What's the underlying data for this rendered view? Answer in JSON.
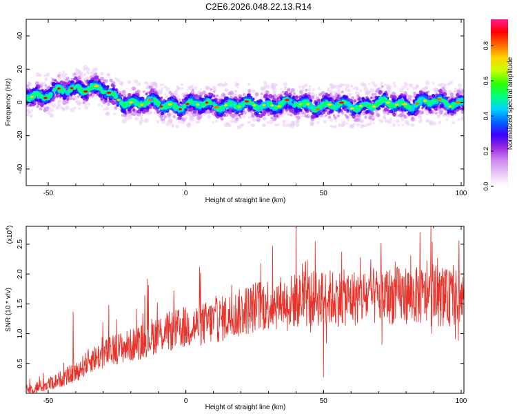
{
  "title": "C2E6.2026.048.22.13.R14",
  "colors": {
    "snr_line": "#e8322a",
    "axis": "#000000",
    "colormap": [
      "#ffffff",
      "#e9c8f5",
      "#cf8af0",
      "#9b2be0",
      "#3b00ff",
      "#0064ff",
      "#00d2ff",
      "#00ff7a",
      "#2eff00",
      "#c8ff00",
      "#ffd400",
      "#ff6a00",
      "#ff0000",
      "#ff1a8c"
    ]
  },
  "chart_data": [
    {
      "type": "heatmap",
      "description": "spectrogram of frequency vs height",
      "xlabel": "Height of straight line (km)",
      "ylabel": "Frequency (Hz)",
      "xlim": [
        -58,
        101
      ],
      "ylim": [
        -50,
        50
      ],
      "xticks": [
        "-50",
        "0",
        "50",
        "100"
      ],
      "yticks": [
        "40",
        "20",
        "0",
        "-20",
        "-40"
      ],
      "colorbar": {
        "label": "Normalized spectral amplitude",
        "range": [
          0.0,
          0.95
        ],
        "ticks": [
          "0.0",
          "0.2",
          "0.4",
          "0.6",
          "0.8"
        ]
      },
      "ridge": {
        "x": [
          -58,
          -50,
          -45,
          -40,
          -35,
          -30,
          -25,
          -20,
          -10,
          0,
          10,
          20,
          30,
          40,
          50,
          60,
          70,
          80,
          90,
          100
        ],
        "y": [
          5,
          4,
          7,
          9,
          9,
          7,
          2,
          0,
          -1,
          -2,
          -1,
          -2,
          -1,
          -1,
          -2,
          -2,
          -1,
          -1,
          0,
          0
        ]
      }
    },
    {
      "type": "line",
      "xlabel": "Height of straight line (km)",
      "ylabel": "SNR (10 * v/v)",
      "y_multiplier": "(x10",
      "y_multiplier_exp": "4",
      "y_multiplier_close": ")",
      "xlim": [
        -58,
        101
      ],
      "ylim": [
        0.0,
        2.8
      ],
      "xticks": [
        "-50",
        "0",
        "50",
        "100"
      ],
      "yticks": [
        "2.5",
        "2.0",
        "1.5",
        "1.0",
        "0.5"
      ],
      "trend": {
        "x": [
          -58,
          -50,
          -45,
          -40,
          -35,
          -30,
          -25,
          -20,
          -15,
          -10,
          -5,
          0,
          10,
          20,
          25,
          30,
          40,
          50,
          60,
          70,
          80,
          90,
          100
        ],
        "y": [
          0.05,
          0.15,
          0.25,
          0.35,
          0.55,
          0.65,
          0.75,
          0.8,
          0.9,
          1.0,
          1.05,
          1.1,
          1.2,
          1.35,
          1.45,
          1.5,
          1.55,
          1.6,
          1.6,
          1.62,
          1.65,
          1.6,
          1.6
        ]
      },
      "peaks": [
        {
          "x": -41,
          "y": 1.37
        },
        {
          "x": -28,
          "y": 1.48
        },
        {
          "x": -14,
          "y": 1.92
        },
        {
          "x": 40,
          "y": 2.8
        },
        {
          "x": 47,
          "y": 2.55
        },
        {
          "x": 50,
          "y": 0.27
        },
        {
          "x": 85,
          "y": 2.7
        },
        {
          "x": 89,
          "y": 2.8
        },
        {
          "x": 99,
          "y": 0.88
        }
      ]
    }
  ]
}
